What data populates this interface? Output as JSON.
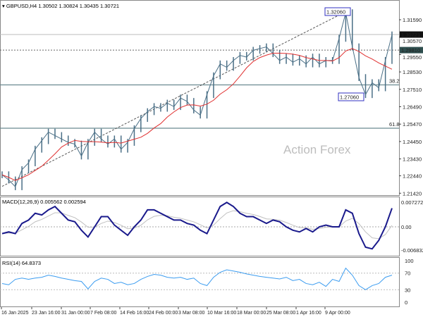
{
  "header": {
    "symbol": "GBPUSD,H4",
    "open": "1.30502",
    "high": "1.30824",
    "low": "1.30435",
    "close": "1.30721"
  },
  "watermark": "Action Forex",
  "chart_data": [
    {
      "type": "line",
      "title": "GBPUSD,H4",
      "y_ticks": [
        "1.31590",
        "1.30570",
        "1.29550",
        "1.28530",
        "1.27510",
        "1.26490",
        "1.25470",
        "1.24450",
        "1.23430",
        "1.22440",
        "1.21420"
      ],
      "ylim": [
        1.2122,
        1.3235
      ],
      "current_price": "1.30721",
      "level_line": "1.29810",
      "annotations": {
        "high": "1.32060",
        "low": "1.27060",
        "fib_382": "38.2",
        "fib_618": "61.8"
      },
      "fib_levels": {
        "38.2": 1.2777,
        "61.8": 1.2523
      },
      "trendline": [
        [
          0,
          1.2182
        ],
        [
          52,
          1.3206
        ]
      ],
      "close": [
        1.225,
        1.222,
        1.218,
        1.228,
        1.232,
        1.24,
        1.245,
        1.25,
        1.248,
        1.246,
        1.244,
        1.243,
        1.236,
        1.244,
        1.25,
        1.246,
        1.243,
        1.246,
        1.24,
        1.244,
        1.252,
        1.258,
        1.262,
        1.265,
        1.264,
        1.267,
        1.265,
        1.27,
        1.268,
        1.263,
        1.26,
        1.272,
        1.283,
        1.29,
        1.288,
        1.292,
        1.295,
        1.294,
        1.298,
        1.299,
        1.3,
        1.296,
        1.292,
        1.294,
        1.291,
        1.293,
        1.29,
        1.294,
        1.29,
        1.292,
        1.292,
        1.305,
        1.32,
        1.3,
        1.282,
        1.272,
        1.279,
        1.276,
        1.292,
        1.307
      ],
      "colors": {
        "price": "#4a6f86",
        "ma": "#e03030",
        "trend": "#555555"
      }
    },
    {
      "type": "line",
      "title": "MACD(12,26,9) 0.005562 0.002594",
      "y_ticks": [
        "0.007272",
        "0.00",
        "-0.006832"
      ],
      "ylim": [
        -0.0075,
        0.0079
      ],
      "macd": [
        -0.002,
        -0.0015,
        -0.002,
        0.001,
        0.002,
        0.004,
        0.0035,
        0.005,
        0.006,
        0.004,
        0.002,
        0.0015,
        -0.001,
        -0.003,
        0,
        0.003,
        0.003,
        0.0005,
        -0.001,
        -0.0025,
        0.0,
        0.002,
        0.005,
        0.005,
        0.004,
        0.003,
        0.002,
        0.002,
        0.001,
        0.0005,
        -0.001,
        -0.002,
        0.002,
        0.006,
        0.0072,
        0.006,
        0.004,
        0.003,
        0.003,
        0.002,
        0.001,
        0.002,
        0.0015,
        0.0,
        -0.001,
        -0.0015,
        -0.0005,
        -0.0015,
        0.0,
        0.0005,
        0.0,
        0.0,
        0.005,
        0.004,
        -0.002,
        -0.006,
        -0.0065,
        -0.004,
        0.0,
        0.0055
      ],
      "colors": {
        "macd": "#1a1a8c",
        "signal": "#c0c0c0"
      }
    },
    {
      "type": "line",
      "title": "RSI(14) 64.8373",
      "y_ticks": [
        "100",
        "70",
        "30",
        "0"
      ],
      "ylim": [
        0,
        100
      ],
      "values": [
        45,
        42,
        55,
        58,
        55,
        58,
        60,
        65,
        62,
        58,
        55,
        52,
        50,
        32,
        50,
        58,
        55,
        45,
        48,
        42,
        45,
        55,
        62,
        67,
        65,
        60,
        58,
        60,
        55,
        58,
        45,
        40,
        60,
        72,
        78,
        75,
        72,
        68,
        65,
        62,
        60,
        58,
        56,
        60,
        52,
        55,
        45,
        42,
        48,
        38,
        55,
        50,
        82,
        65,
        40,
        30,
        40,
        45,
        60,
        65
      ],
      "colors": {
        "rsi": "#3b9cf0"
      }
    }
  ],
  "x_ticks": [
    "16 Jan 2025",
    "23 Jan 16:00",
    "31 Jan 00:00",
    "7 Feb 08:00",
    "14 Feb 16:00",
    "24 Feb 00:00",
    "3 Mar 08:00",
    "10 Mar 16:00",
    "18 Mar 00:00",
    "25 Mar 08:00",
    "1 Apr 16:00",
    "9 Apr 00:00"
  ]
}
